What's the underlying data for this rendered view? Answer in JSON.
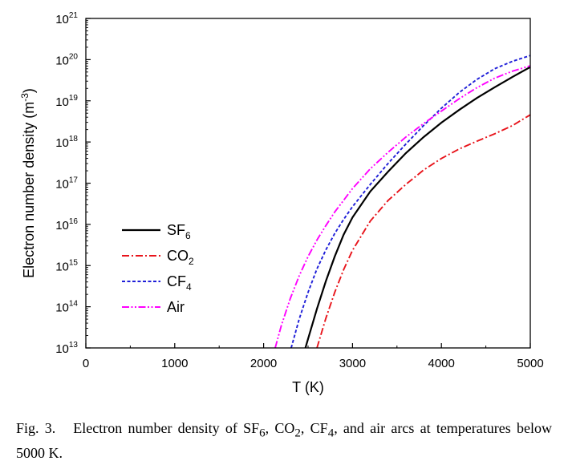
{
  "chart_data": {
    "type": "line",
    "xlabel": "T (K)",
    "ylabel": "Electron number density (m",
    "ylabel_sup": "-3",
    "ylabel_end": ")",
    "xlim": [
      0,
      5000
    ],
    "ylim_exponent": [
      13,
      21
    ],
    "yscale": "log",
    "grid": false,
    "legend_position": "left-middle",
    "x_ticks": [
      0,
      1000,
      2000,
      3000,
      4000,
      5000
    ],
    "x_tick_labels": [
      "0",
      "1000",
      "2000",
      "3000",
      "4000",
      "5000"
    ],
    "y_tick_exponents": [
      13,
      14,
      15,
      16,
      17,
      18,
      19,
      20,
      21
    ],
    "y_tick_base": "10",
    "series": [
      {
        "name": "SF",
        "name_sub": "6",
        "color": "#000000",
        "dash": "solid",
        "x": [
          2470,
          2500,
          2600,
          2700,
          2800,
          2900,
          3000,
          3200,
          3400,
          3600,
          3800,
          4000,
          4200,
          4400,
          4600,
          4800,
          5000
        ],
        "y_log10": [
          13.0,
          13.22,
          13.95,
          14.62,
          15.22,
          15.75,
          16.17,
          16.8,
          17.28,
          17.73,
          18.12,
          18.47,
          18.78,
          19.07,
          19.33,
          19.58,
          19.82
        ]
      },
      {
        "name": "CO",
        "name_sub": "2",
        "color": "#e8141b",
        "dash": "dashdot",
        "x": [
          2600,
          2700,
          2800,
          2900,
          3000,
          3200,
          3400,
          3600,
          3800,
          4000,
          4200,
          4400,
          4600,
          4800,
          5000
        ],
        "y_log10": [
          13.0,
          13.72,
          14.35,
          14.9,
          15.37,
          16.08,
          16.58,
          16.97,
          17.32,
          17.6,
          17.83,
          18.02,
          18.2,
          18.4,
          18.66
        ]
      },
      {
        "name": "CF",
        "name_sub": "4",
        "color": "#1f1fd8",
        "dash": "dash",
        "x": [
          2310,
          2400,
          2500,
          2600,
          2700,
          2800,
          2900,
          3000,
          3200,
          3400,
          3600,
          3800,
          4000,
          4200,
          4400,
          4600,
          4800,
          5000
        ],
        "y_log10": [
          13.0,
          13.7,
          14.35,
          14.92,
          15.38,
          15.78,
          16.12,
          16.43,
          16.97,
          17.48,
          17.95,
          18.4,
          18.82,
          19.2,
          19.52,
          19.78,
          19.96,
          20.1
        ]
      },
      {
        "name": "Air",
        "name_sub": "",
        "color": "#ff00ff",
        "dash": "dashdotdot",
        "x": [
          2130,
          2200,
          2300,
          2400,
          2500,
          2600,
          2700,
          2800,
          3000,
          3200,
          3400,
          3600,
          3800,
          4000,
          4200,
          4400,
          4600,
          4800,
          5000
        ],
        "y_log10": [
          13.0,
          13.55,
          14.2,
          14.75,
          15.22,
          15.62,
          15.97,
          16.3,
          16.87,
          17.35,
          17.75,
          18.12,
          18.45,
          18.75,
          19.05,
          19.32,
          19.55,
          19.72,
          19.85
        ]
      }
    ]
  },
  "caption": {
    "fig_num": "Fig. 3.",
    "text": "Electron number density of SF",
    "sub1": "6",
    "text2": ", CO",
    "sub2": "2",
    "text3": ", CF",
    "sub3": "4",
    "text4": ", and air arcs at temperatures below 5000 K."
  }
}
